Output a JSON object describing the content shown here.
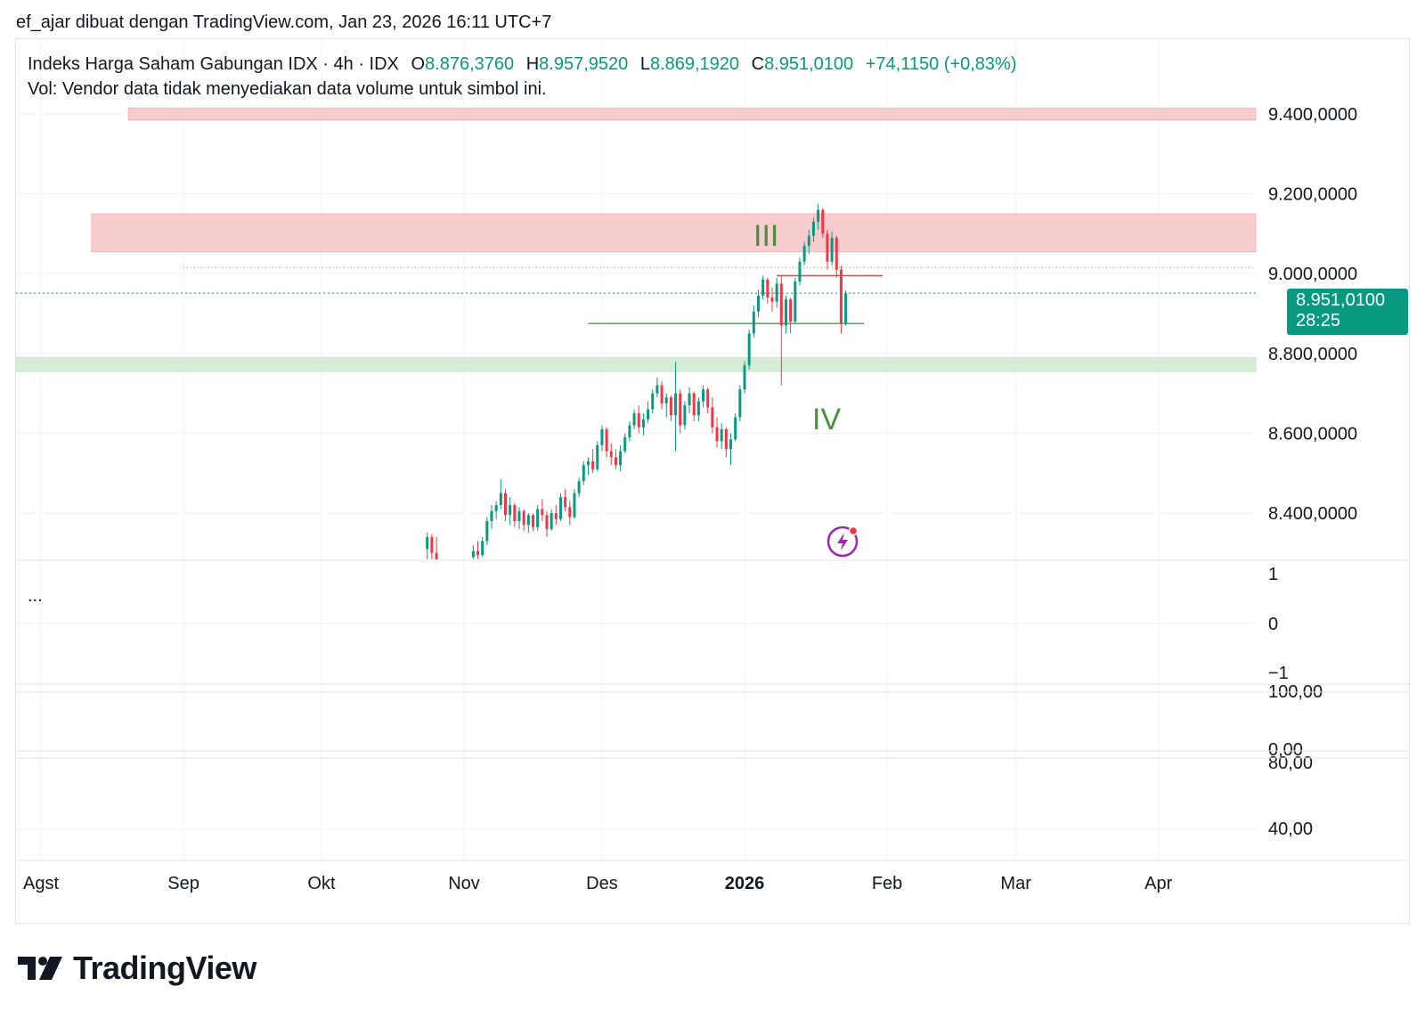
{
  "header": {
    "text": "ef_ajar dibuat dengan TradingView.com, Jan 23, 2026 16:11 UTC+7"
  },
  "legend": {
    "symbol": "Indeks Harga Saham Gabungan IDX · 4h · IDX",
    "o_key": "O",
    "o_val": "8.876,3760",
    "h_key": "H",
    "h_val": "8.957,9520",
    "l_key": "L",
    "l_val": "8.869,1920",
    "c_key": "C",
    "c_val": "8.951,0100",
    "change": "+74,1150 (+0,83%)",
    "vol": "Vol: Vendor data tidak menyediakan data volume untuk simbol ini."
  },
  "last_price": {
    "value": "8.951,0100",
    "countdown": "28:25"
  },
  "pane_menu": "...",
  "wave_labels": {
    "iii": "III",
    "iv": "IV"
  },
  "brand": "TradingView",
  "colors": {
    "up": "#089981",
    "down": "#f23645",
    "resistance_zone": "#f7cccf",
    "support_zone": "#d6ecd6",
    "wave_label": "#4a8f3c"
  },
  "chart_data": {
    "type": "candlestick",
    "interval": "4h",
    "price_axis": {
      "ticks": [
        9400,
        9200,
        9000,
        8800,
        8600,
        8400
      ],
      "tick_labels": [
        "9.400,0000",
        "9.200,0000",
        "9.000,0000",
        "8.800,0000",
        "8.600,0000",
        "8.400,0000"
      ]
    },
    "x_axis_labels": [
      "Agst",
      "Sep",
      "Okt",
      "Nov",
      "Des",
      "2026",
      "Feb",
      "Mar",
      "Apr"
    ],
    "pane2_ticks": [
      "1",
      "0",
      "−1"
    ],
    "pane3_ticks": [
      "100,00",
      "0,00"
    ],
    "pane4_ticks": [
      "80,00",
      "40,00"
    ],
    "zones": [
      {
        "kind": "resistance",
        "from_date": "2025-08-20",
        "top": 9415,
        "bottom": 9385
      },
      {
        "kind": "resistance",
        "from_date": "2025-08-12",
        "top": 9150,
        "bottom": 9055
      },
      {
        "kind": "support",
        "from_date": "2025-08-01",
        "top": 8790,
        "bottom": 8755
      }
    ],
    "lines": [
      {
        "kind": "dotted",
        "from_date": "2025-09-01",
        "price": 9015,
        "color": "#9598a1"
      },
      {
        "kind": "horizontal",
        "from_date": "2026-01-08",
        "to_date": "2026-01-31",
        "price": 8995,
        "color": "#f23645"
      },
      {
        "kind": "horizontal",
        "from_date": "2025-11-28",
        "to_date": "2026-01-27",
        "price": 8875,
        "color": "#4caf50"
      }
    ],
    "last_close": 8951.01,
    "candles": [
      {
        "t": "2025-10-24",
        "o": 8310,
        "h": 8352,
        "l": 8265,
        "c": 8340
      },
      {
        "t": "2025-10-25",
        "o": 8340,
        "h": 8348,
        "l": 8280,
        "c": 8300
      },
      {
        "t": "2025-10-26",
        "o": 8300,
        "h": 8340,
        "l": 8260,
        "c": 8275
      },
      {
        "t": "2025-11-03",
        "o": 8290,
        "h": 8320,
        "l": 8270,
        "c": 8305
      },
      {
        "t": "2025-11-04",
        "o": 8305,
        "h": 8330,
        "l": 8285,
        "c": 8295
      },
      {
        "t": "2025-11-05",
        "o": 8295,
        "h": 8340,
        "l": 8290,
        "c": 8330
      },
      {
        "t": "2025-11-06",
        "o": 8330,
        "h": 8390,
        "l": 8320,
        "c": 8380
      },
      {
        "t": "2025-11-07",
        "o": 8380,
        "h": 8420,
        "l": 8360,
        "c": 8405
      },
      {
        "t": "2025-11-08",
        "o": 8405,
        "h": 8430,
        "l": 8385,
        "c": 8420
      },
      {
        "t": "2025-11-09",
        "o": 8420,
        "h": 8485,
        "l": 8410,
        "c": 8450
      },
      {
        "t": "2025-11-10",
        "o": 8450,
        "h": 8460,
        "l": 8380,
        "c": 8395
      },
      {
        "t": "2025-11-11",
        "o": 8395,
        "h": 8440,
        "l": 8370,
        "c": 8420
      },
      {
        "t": "2025-11-12",
        "o": 8420,
        "h": 8425,
        "l": 8365,
        "c": 8380
      },
      {
        "t": "2025-11-13",
        "o": 8380,
        "h": 8415,
        "l": 8360,
        "c": 8405
      },
      {
        "t": "2025-11-14",
        "o": 8405,
        "h": 8410,
        "l": 8355,
        "c": 8370
      },
      {
        "t": "2025-11-15",
        "o": 8370,
        "h": 8400,
        "l": 8350,
        "c": 8395
      },
      {
        "t": "2025-11-16",
        "o": 8395,
        "h": 8398,
        "l": 8355,
        "c": 8365
      },
      {
        "t": "2025-11-17",
        "o": 8365,
        "h": 8420,
        "l": 8355,
        "c": 8410
      },
      {
        "t": "2025-11-18",
        "o": 8410,
        "h": 8435,
        "l": 8380,
        "c": 8395
      },
      {
        "t": "2025-11-19",
        "o": 8395,
        "h": 8405,
        "l": 8340,
        "c": 8360
      },
      {
        "t": "2025-11-20",
        "o": 8360,
        "h": 8410,
        "l": 8355,
        "c": 8400
      },
      {
        "t": "2025-11-21",
        "o": 8400,
        "h": 8420,
        "l": 8370,
        "c": 8385
      },
      {
        "t": "2025-11-22",
        "o": 8385,
        "h": 8450,
        "l": 8380,
        "c": 8440
      },
      {
        "t": "2025-11-23",
        "o": 8440,
        "h": 8460,
        "l": 8405,
        "c": 8415
      },
      {
        "t": "2025-11-24",
        "o": 8415,
        "h": 8430,
        "l": 8370,
        "c": 8390
      },
      {
        "t": "2025-11-25",
        "o": 8390,
        "h": 8460,
        "l": 8385,
        "c": 8450
      },
      {
        "t": "2025-11-26",
        "o": 8450,
        "h": 8490,
        "l": 8440,
        "c": 8480
      },
      {
        "t": "2025-11-27",
        "o": 8480,
        "h": 8530,
        "l": 8470,
        "c": 8520
      },
      {
        "t": "2025-11-28",
        "o": 8520,
        "h": 8540,
        "l": 8495,
        "c": 8530
      },
      {
        "t": "2025-11-29",
        "o": 8530,
        "h": 8560,
        "l": 8500,
        "c": 8510
      },
      {
        "t": "2025-11-30",
        "o": 8510,
        "h": 8580,
        "l": 8505,
        "c": 8570
      },
      {
        "t": "2025-12-01",
        "o": 8570,
        "h": 8620,
        "l": 8555,
        "c": 8610
      },
      {
        "t": "2025-12-02",
        "o": 8610,
        "h": 8615,
        "l": 8540,
        "c": 8555
      },
      {
        "t": "2025-12-03",
        "o": 8555,
        "h": 8575,
        "l": 8520,
        "c": 8540
      },
      {
        "t": "2025-12-04",
        "o": 8540,
        "h": 8560,
        "l": 8510,
        "c": 8520
      },
      {
        "t": "2025-12-05",
        "o": 8520,
        "h": 8570,
        "l": 8505,
        "c": 8555
      },
      {
        "t": "2025-12-06",
        "o": 8555,
        "h": 8600,
        "l": 8550,
        "c": 8590
      },
      {
        "t": "2025-12-07",
        "o": 8590,
        "h": 8630,
        "l": 8580,
        "c": 8620
      },
      {
        "t": "2025-12-08",
        "o": 8620,
        "h": 8660,
        "l": 8610,
        "c": 8650
      },
      {
        "t": "2025-12-09",
        "o": 8650,
        "h": 8670,
        "l": 8600,
        "c": 8615
      },
      {
        "t": "2025-12-10",
        "o": 8615,
        "h": 8650,
        "l": 8595,
        "c": 8635
      },
      {
        "t": "2025-12-11",
        "o": 8635,
        "h": 8680,
        "l": 8625,
        "c": 8660
      },
      {
        "t": "2025-12-12",
        "o": 8660,
        "h": 8710,
        "l": 8650,
        "c": 8700
      },
      {
        "t": "2025-12-13",
        "o": 8700,
        "h": 8740,
        "l": 8690,
        "c": 8720
      },
      {
        "t": "2025-12-14",
        "o": 8720,
        "h": 8730,
        "l": 8660,
        "c": 8675
      },
      {
        "t": "2025-12-15",
        "o": 8675,
        "h": 8700,
        "l": 8640,
        "c": 8690
      },
      {
        "t": "2025-12-16",
        "o": 8690,
        "h": 8695,
        "l": 8630,
        "c": 8645
      },
      {
        "t": "2025-12-17",
        "o": 8645,
        "h": 8780,
        "l": 8555,
        "c": 8700
      },
      {
        "t": "2025-12-18",
        "o": 8700,
        "h": 8710,
        "l": 8600,
        "c": 8620
      },
      {
        "t": "2025-12-19",
        "o": 8620,
        "h": 8680,
        "l": 8610,
        "c": 8670
      },
      {
        "t": "2025-12-20",
        "o": 8670,
        "h": 8715,
        "l": 8650,
        "c": 8700
      },
      {
        "t": "2025-12-21",
        "o": 8700,
        "h": 8705,
        "l": 8630,
        "c": 8645
      },
      {
        "t": "2025-12-22",
        "o": 8645,
        "h": 8690,
        "l": 8630,
        "c": 8680
      },
      {
        "t": "2025-12-23",
        "o": 8680,
        "h": 8720,
        "l": 8665,
        "c": 8710
      },
      {
        "t": "2025-12-24",
        "o": 8710,
        "h": 8715,
        "l": 8650,
        "c": 8665
      },
      {
        "t": "2025-12-25",
        "o": 8665,
        "h": 8690,
        "l": 8600,
        "c": 8615
      },
      {
        "t": "2025-12-26",
        "o": 8615,
        "h": 8640,
        "l": 8565,
        "c": 8580
      },
      {
        "t": "2025-12-27",
        "o": 8580,
        "h": 8625,
        "l": 8560,
        "c": 8610
      },
      {
        "t": "2025-12-28",
        "o": 8610,
        "h": 8615,
        "l": 8540,
        "c": 8560
      },
      {
        "t": "2025-12-29",
        "o": 8560,
        "h": 8600,
        "l": 8520,
        "c": 8585
      },
      {
        "t": "2025-12-30",
        "o": 8585,
        "h": 8650,
        "l": 8580,
        "c": 8640
      },
      {
        "t": "2025-12-31",
        "o": 8640,
        "h": 8720,
        "l": 8630,
        "c": 8710
      },
      {
        "t": "2026-01-01",
        "o": 8710,
        "h": 8780,
        "l": 8700,
        "c": 8770
      },
      {
        "t": "2026-01-02",
        "o": 8770,
        "h": 8860,
        "l": 8760,
        "c": 8850
      },
      {
        "t": "2026-01-03",
        "o": 8850,
        "h": 8920,
        "l": 8840,
        "c": 8905
      },
      {
        "t": "2026-01-04",
        "o": 8905,
        "h": 8960,
        "l": 8890,
        "c": 8945
      },
      {
        "t": "2026-01-05",
        "o": 8945,
        "h": 8995,
        "l": 8935,
        "c": 8985
      },
      {
        "t": "2026-01-06",
        "o": 8985,
        "h": 8990,
        "l": 8925,
        "c": 8940
      },
      {
        "t": "2026-01-07",
        "o": 8940,
        "h": 8965,
        "l": 8905,
        "c": 8930
      },
      {
        "t": "2026-01-08",
        "o": 8930,
        "h": 8990,
        "l": 8915,
        "c": 8975
      },
      {
        "t": "2026-01-09",
        "o": 8975,
        "h": 8995,
        "l": 8720,
        "c": 8870
      },
      {
        "t": "2026-01-10",
        "o": 8870,
        "h": 8945,
        "l": 8850,
        "c": 8935
      },
      {
        "t": "2026-01-11",
        "o": 8935,
        "h": 8940,
        "l": 8850,
        "c": 8880
      },
      {
        "t": "2026-01-12",
        "o": 8880,
        "h": 8990,
        "l": 8875,
        "c": 8980
      },
      {
        "t": "2026-01-13",
        "o": 8980,
        "h": 9040,
        "l": 8970,
        "c": 9030
      },
      {
        "t": "2026-01-14",
        "o": 9030,
        "h": 9080,
        "l": 9020,
        "c": 9070
      },
      {
        "t": "2026-01-15",
        "o": 9070,
        "h": 9110,
        "l": 9050,
        "c": 9095
      },
      {
        "t": "2026-01-16",
        "o": 9095,
        "h": 9140,
        "l": 9080,
        "c": 9130
      },
      {
        "t": "2026-01-17",
        "o": 9130,
        "h": 9175,
        "l": 9110,
        "c": 9160
      },
      {
        "t": "2026-01-18",
        "o": 9160,
        "h": 9165,
        "l": 9090,
        "c": 9100
      },
      {
        "t": "2026-01-19",
        "o": 9100,
        "h": 9110,
        "l": 9010,
        "c": 9030
      },
      {
        "t": "2026-01-20",
        "o": 9030,
        "h": 9105,
        "l": 9020,
        "c": 9090
      },
      {
        "t": "2026-01-21",
        "o": 9090,
        "h": 9095,
        "l": 8990,
        "c": 9010
      },
      {
        "t": "2026-01-22",
        "o": 9010,
        "h": 9020,
        "l": 8850,
        "c": 8876
      },
      {
        "t": "2026-01-23",
        "o": 8876,
        "h": 8958,
        "l": 8869,
        "c": 8951
      }
    ]
  }
}
